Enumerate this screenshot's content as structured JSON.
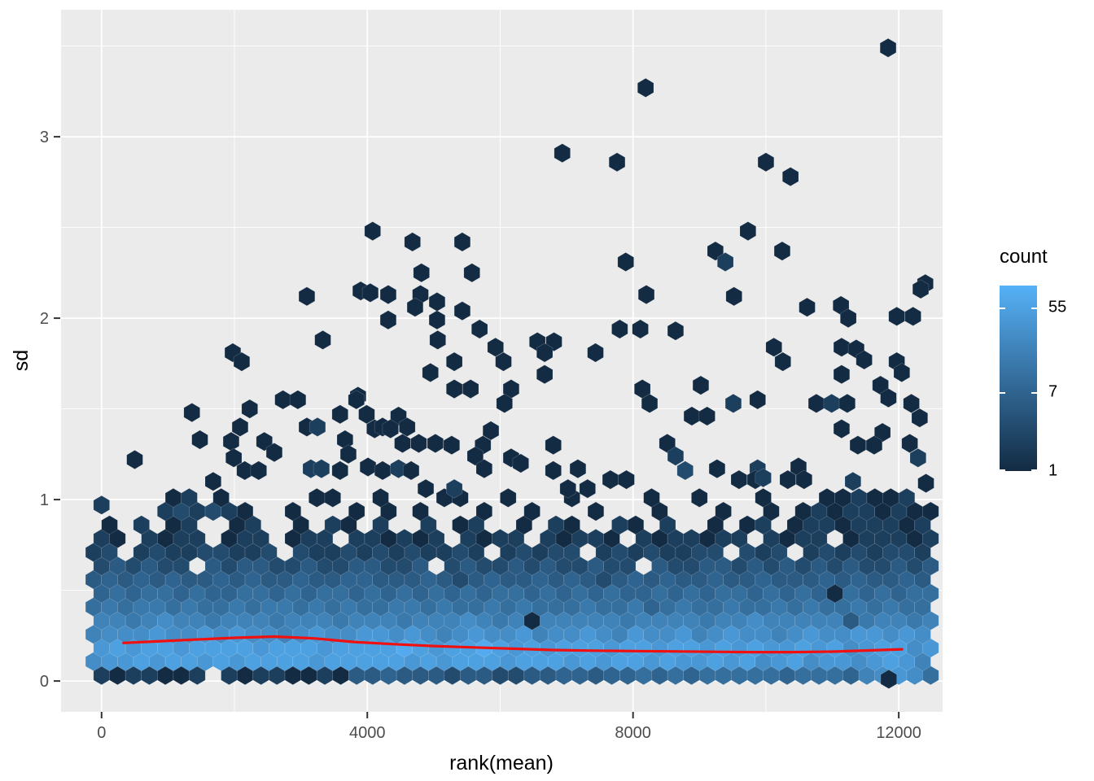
{
  "chart_data": {
    "type": "hexbin",
    "title": "",
    "xlabel": "rank(mean)",
    "ylabel": "sd",
    "x_ticks": [
      {
        "v": 0,
        "label": "0"
      },
      {
        "v": 4000,
        "label": "4000"
      },
      {
        "v": 8000,
        "label": "8000"
      },
      {
        "v": 12000,
        "label": "12000"
      }
    ],
    "x_minor": [
      2000,
      6000,
      10000
    ],
    "y_ticks": [
      {
        "v": 0,
        "label": "0"
      },
      {
        "v": 1,
        "label": "1"
      },
      {
        "v": 2,
        "label": "2"
      },
      {
        "v": 3,
        "label": "3"
      }
    ],
    "y_minor": [
      0.5,
      1.5,
      2.5,
      3.5
    ],
    "xlim": [
      -610,
      12660
    ],
    "ylim": [
      -0.17,
      3.7
    ],
    "grid": "on",
    "legend": {
      "title": "count",
      "tick_values": [
        55,
        7,
        1
      ],
      "count_max": 95,
      "color_low": "#132B43",
      "color_high": "#56B1F7",
      "position": "right"
    },
    "hex_bin_width_x": 240,
    "levels": {
      "1": 1,
      "2": 2,
      "3": 3,
      "4": 5,
      "5": 7,
      "6": 10,
      "7": 14,
      "8": 20,
      "9": 28,
      "A": 40,
      "B": 55,
      "C": 75
    },
    "dense_rows": [
      {
        "sd": 0.031,
        "x0": 0,
        "cells": "2122112.212211214454443443344554556565666665666589A96"
      },
      {
        "sd": 0.107,
        "x0": -120,
        "cells": "9AABABBABABBBBABBBBBABABBBABBBABABBABAABAB9AB9AA9ABA8"
      },
      {
        "sd": 0.182,
        "x0": 0,
        "cells": "ABABBABBBBABBBABBBBCBABBCBABABBBABBABBABABAABAB9ABB9A"
      },
      {
        "sd": 0.257,
        "x0": -120,
        "cells": "8999A99A9A9989A99AA9A989A99A899A98A99A89A9989A99AA9A9"
      },
      {
        "sd": 0.333,
        "x0": 0,
        "cells": "88789887888788878887888987818888878888788988888478878"
      },
      {
        "sd": 0.408,
        "x0": -120,
        "cells": "67677676676776767667767667676667667567667667676676766"
      },
      {
        "sd": 0.483,
        "x0": 0,
        "cells": "56566565566565665656565656656565655656566565651656566"
      },
      {
        "sd": 0.559,
        "x0": -120,
        "cells": "45454544545445445544454345445454345454454454445454454"
      },
      {
        "sd": 0.634,
        "x0": 0,
        "cells": "343433.43443343344334.343343433433.433443434343433434"
      },
      {
        "sd": 0.709,
        "x0": -120,
        "cells": "23.232233223.322323232232.23233.23232233.323.23232332"
      },
      {
        "sd": 0.785,
        "x0": 0,
        "cells": "21.2122.122.122.221212.2122.21221.2122122.2122.122212"
      },
      {
        "sd": 0.86,
        "x0": -120,
        "cells": ".1.2.12..12..1.21.2..2.12..1.21..21.2..1.12.122122212"
      },
      {
        "sd": 0.935,
        "x0": 0,
        "cells": "....232321..1...1.1.1...1..1...1...1...1..1.121221211"
      },
      {
        "sd": 1.01,
        "x0": -120,
        "cells": ".....12.1.....11..1...11..1...1....1..1...1...112112."
      }
    ],
    "scatter_hexes": [
      [
        11840,
        3.49,
        1
      ],
      [
        8190,
        3.27,
        1
      ],
      [
        6935,
        2.91,
        1
      ],
      [
        7760,
        2.86,
        1
      ],
      [
        10000,
        2.86,
        1
      ],
      [
        10370,
        2.78,
        1
      ],
      [
        4080,
        2.48,
        1
      ],
      [
        9730,
        2.48,
        1
      ],
      [
        4680,
        2.42,
        1
      ],
      [
        5430,
        2.42,
        1
      ],
      [
        9240,
        2.37,
        1
      ],
      [
        10245,
        2.37,
        1
      ],
      [
        7890,
        2.31,
        1
      ],
      [
        9390,
        2.31,
        2
      ],
      [
        4815,
        2.25,
        1
      ],
      [
        5575,
        2.25,
        1
      ],
      [
        12400,
        2.19,
        1
      ],
      [
        12330,
        2.16,
        1
      ],
      [
        3900,
        2.15,
        1
      ],
      [
        3090,
        2.12,
        1
      ],
      [
        4045,
        2.14,
        1
      ],
      [
        4315,
        2.13,
        1
      ],
      [
        4800,
        2.13,
        1
      ],
      [
        8200,
        2.13,
        1
      ],
      [
        9520,
        2.12,
        1
      ],
      [
        5050,
        2.09,
        1
      ],
      [
        4720,
        2.06,
        1
      ],
      [
        10620,
        2.06,
        1
      ],
      [
        11130,
        2.07,
        1
      ],
      [
        5430,
        2.04,
        1
      ],
      [
        11970,
        2.01,
        1
      ],
      [
        12215,
        2.01,
        1
      ],
      [
        11240,
        2.0,
        1
      ],
      [
        4315,
        1.99,
        1
      ],
      [
        5050,
        1.99,
        1
      ],
      [
        5690,
        1.94,
        1
      ],
      [
        7800,
        1.94,
        1
      ],
      [
        8110,
        1.94,
        1
      ],
      [
        8640,
        1.93,
        1
      ],
      [
        3330,
        1.88,
        1
      ],
      [
        5060,
        1.88,
        1
      ],
      [
        6560,
        1.87,
        1
      ],
      [
        6810,
        1.87,
        1
      ],
      [
        5930,
        1.84,
        1
      ],
      [
        10120,
        1.84,
        1
      ],
      [
        11140,
        1.84,
        1
      ],
      [
        11360,
        1.83,
        1
      ],
      [
        1975,
        1.81,
        1
      ],
      [
        6670,
        1.81,
        1
      ],
      [
        7435,
        1.81,
        1
      ],
      [
        2110,
        1.76,
        1
      ],
      [
        5310,
        1.76,
        1
      ],
      [
        6050,
        1.76,
        1
      ],
      [
        10255,
        1.76,
        1
      ],
      [
        11480,
        1.77,
        1
      ],
      [
        11970,
        1.76,
        1
      ],
      [
        4950,
        1.7,
        1
      ],
      [
        6670,
        1.69,
        1
      ],
      [
        11140,
        1.69,
        1
      ],
      [
        12045,
        1.7,
        1
      ],
      [
        5310,
        1.61,
        1
      ],
      [
        5555,
        1.61,
        1
      ],
      [
        6165,
        1.61,
        1
      ],
      [
        9020,
        1.63,
        1
      ],
      [
        11725,
        1.63,
        1
      ],
      [
        8140,
        1.61,
        1
      ],
      [
        3860,
        1.57,
        1
      ],
      [
        2730,
        1.55,
        1
      ],
      [
        2955,
        1.55,
        1
      ],
      [
        3835,
        1.55,
        1
      ],
      [
        9875,
        1.55,
        1
      ],
      [
        11845,
        1.56,
        1
      ],
      [
        6065,
        1.53,
        1
      ],
      [
        8250,
        1.53,
        1
      ],
      [
        9510,
        1.53,
        2
      ],
      [
        10760,
        1.53,
        1
      ],
      [
        10990,
        1.53,
        2
      ],
      [
        11225,
        1.53,
        1
      ],
      [
        12190,
        1.53,
        1
      ],
      [
        1360,
        1.48,
        1
      ],
      [
        2230,
        1.5,
        1
      ],
      [
        3590,
        1.47,
        1
      ],
      [
        3990,
        1.47,
        1
      ],
      [
        4470,
        1.46,
        1
      ],
      [
        8885,
        1.46,
        1
      ],
      [
        9115,
        1.46,
        1
      ],
      [
        12315,
        1.45,
        1
      ],
      [
        2085,
        1.4,
        1
      ],
      [
        3090,
        1.4,
        1
      ],
      [
        3250,
        1.4,
        2
      ],
      [
        4110,
        1.39,
        1
      ],
      [
        4230,
        1.4,
        1
      ],
      [
        4350,
        1.39,
        1
      ],
      [
        4600,
        1.4,
        1
      ],
      [
        5860,
        1.38,
        1
      ],
      [
        11140,
        1.39,
        1
      ],
      [
        11755,
        1.37,
        1
      ],
      [
        1480,
        1.33,
        1
      ],
      [
        1950,
        1.32,
        1
      ],
      [
        2450,
        1.32,
        1
      ],
      [
        3665,
        1.33,
        1
      ],
      [
        4530,
        1.31,
        1
      ],
      [
        4775,
        1.31,
        1
      ],
      [
        5025,
        1.31,
        1
      ],
      [
        5270,
        1.3,
        1
      ],
      [
        5740,
        1.3,
        1
      ],
      [
        6800,
        1.3,
        1
      ],
      [
        8515,
        1.31,
        1
      ],
      [
        11385,
        1.3,
        1
      ],
      [
        11630,
        1.3,
        1
      ],
      [
        12165,
        1.31,
        1
      ],
      [
        500,
        1.22,
        1
      ],
      [
        1990,
        1.23,
        1
      ],
      [
        2600,
        1.26,
        1
      ],
      [
        3715,
        1.25,
        1
      ],
      [
        5625,
        1.24,
        1
      ],
      [
        6165,
        1.23,
        1
      ],
      [
        6310,
        1.2,
        1
      ],
      [
        8640,
        1.24,
        2
      ],
      [
        12290,
        1.23,
        2
      ],
      [
        2155,
        1.16,
        1
      ],
      [
        2365,
        1.16,
        1
      ],
      [
        3150,
        1.17,
        2
      ],
      [
        3310,
        1.17,
        2
      ],
      [
        3590,
        1.16,
        1
      ],
      [
        4010,
        1.18,
        1
      ],
      [
        4230,
        1.16,
        1
      ],
      [
        4470,
        1.17,
        2
      ],
      [
        4660,
        1.16,
        1
      ],
      [
        5760,
        1.17,
        1
      ],
      [
        6800,
        1.16,
        1
      ],
      [
        7170,
        1.17,
        1
      ],
      [
        8785,
        1.16,
        3
      ],
      [
        9265,
        1.17,
        1
      ],
      [
        9875,
        1.17,
        2
      ],
      [
        10490,
        1.18,
        1
      ],
      [
        1680,
        1.1,
        1
      ],
      [
        4880,
        1.06,
        1
      ],
      [
        5310,
        1.06,
        2
      ],
      [
        7020,
        1.06,
        1
      ],
      [
        7315,
        1.06,
        1
      ],
      [
        7660,
        1.11,
        1
      ],
      [
        7900,
        1.11,
        1
      ],
      [
        9595,
        1.11,
        1
      ],
      [
        9840,
        1.11,
        1
      ],
      [
        9960,
        1.12,
        2
      ],
      [
        10330,
        1.11,
        1
      ],
      [
        10575,
        1.11,
        1
      ],
      [
        11310,
        1.1,
        2
      ],
      [
        12410,
        1.09,
        1
      ],
      [
        0,
        0.97,
        2
      ],
      [
        11850,
        0.01,
        1
      ]
    ],
    "smooth_line": {
      "color": "#F01010",
      "points": [
        [
          330,
          0.21
        ],
        [
          800,
          0.218
        ],
        [
          1400,
          0.228
        ],
        [
          2000,
          0.238
        ],
        [
          2600,
          0.245
        ],
        [
          3200,
          0.235
        ],
        [
          3800,
          0.215
        ],
        [
          4400,
          0.203
        ],
        [
          5000,
          0.193
        ],
        [
          5600,
          0.185
        ],
        [
          6200,
          0.178
        ],
        [
          6800,
          0.171
        ],
        [
          7400,
          0.167
        ],
        [
          8000,
          0.165
        ],
        [
          8600,
          0.163
        ],
        [
          9200,
          0.161
        ],
        [
          9800,
          0.159
        ],
        [
          10400,
          0.159
        ],
        [
          11000,
          0.162
        ],
        [
          11500,
          0.168
        ],
        [
          12050,
          0.175
        ]
      ]
    }
  },
  "style": {
    "panel_bg": "#EBEBEB",
    "grid_color": "#FFFFFF",
    "tick_label_color": "#4D4D4D",
    "axis_title_color": "#000000",
    "tick_mark_color": "#333333"
  }
}
